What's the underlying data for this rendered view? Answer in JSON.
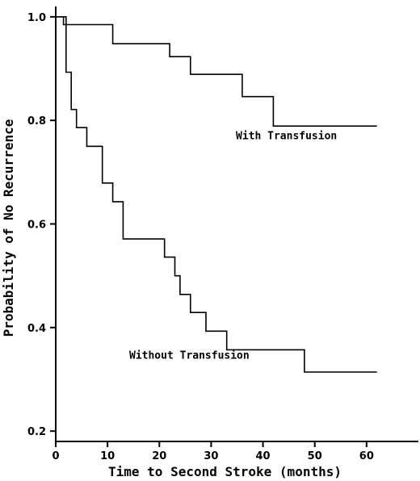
{
  "chart_data": {
    "type": "line",
    "title": "",
    "xlabel": "Time to Second Stroke (months)",
    "ylabel": "Probability of No Recurrence",
    "xlim": [
      0,
      70
    ],
    "ylim": [
      0.18,
      1.02
    ],
    "xticks": [
      0,
      10,
      20,
      30,
      40,
      50,
      60
    ],
    "xtick_labels": [
      "0",
      "10",
      "20",
      "30",
      "40",
      "50",
      "60"
    ],
    "yticks": [
      0.2,
      0.4,
      0.6,
      0.8,
      1.0
    ],
    "ytick_labels": [
      "0.2",
      "0.4",
      "0.6",
      "0.8",
      "1.0"
    ],
    "step": true,
    "grid": false,
    "series": [
      {
        "name": "With Transfusion",
        "x": [
          0,
          1.5,
          11,
          22,
          26,
          36,
          42,
          62
        ],
        "y": [
          1.0,
          0.985,
          0.948,
          0.923,
          0.889,
          0.846,
          0.789,
          0.789
        ]
      },
      {
        "name": "Without Transfusion",
        "x": [
          0,
          2,
          3,
          4,
          6,
          9,
          11,
          13,
          21,
          23,
          24,
          26,
          29,
          33,
          36,
          48,
          62
        ],
        "y": [
          1.0,
          0.893,
          0.821,
          0.786,
          0.75,
          0.679,
          0.643,
          0.571,
          0.536,
          0.5,
          0.464,
          0.429,
          0.393,
          0.357,
          0.357,
          0.314,
          0.314
        ]
      }
    ],
    "annotations": [
      {
        "text": "With Transfusion",
        "series": "With Transfusion"
      },
      {
        "text": "Without Transfusion",
        "series": "Without Transfusion"
      }
    ]
  }
}
